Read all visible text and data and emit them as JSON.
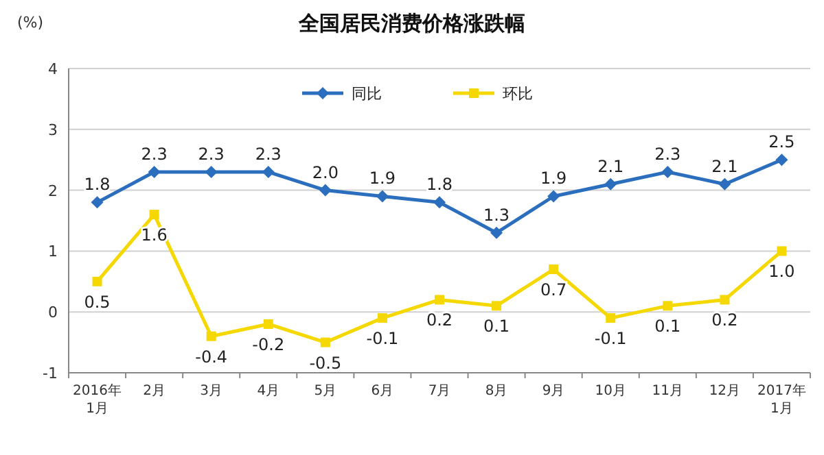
{
  "chart_data": {
    "type": "line",
    "title": "全国居民消费价格涨跌幅",
    "ylabel": "(%)",
    "categories": [
      "2016年\n1月",
      "2月",
      "3月",
      "4月",
      "5月",
      "6月",
      "7月",
      "8月",
      "9月",
      "10月",
      "11月",
      "12月",
      "2017年\n1月"
    ],
    "series": [
      {
        "name": "同比",
        "color": "#2a6ebd",
        "marker": "diamond",
        "values": [
          1.8,
          2.3,
          2.3,
          2.3,
          2.0,
          1.9,
          1.8,
          1.3,
          1.9,
          2.1,
          2.3,
          2.1,
          2.5
        ],
        "value_labels": [
          "1.8",
          "2.3",
          "2.3",
          "2.3",
          "2.0",
          "1.9",
          "1.8",
          "1.3",
          "1.9",
          "2.1",
          "2.3",
          "2.1",
          "2.5"
        ]
      },
      {
        "name": "环比",
        "color": "#f5d800",
        "marker": "square",
        "values": [
          0.5,
          1.6,
          -0.4,
          -0.2,
          -0.5,
          -0.1,
          0.2,
          0.1,
          0.7,
          -0.1,
          0.1,
          0.2,
          1.0
        ],
        "value_labels": [
          "0.5",
          "1.6",
          "-0.4",
          "-0.2",
          "-0.5",
          "-0.1",
          "0.2",
          "0.1",
          "0.7",
          "-0.1",
          "0.1",
          "0.2",
          "1.0"
        ]
      }
    ],
    "ylim": [
      -1,
      4
    ],
    "yticks": [
      -1,
      0,
      1,
      2,
      3,
      4
    ],
    "grid": "y",
    "legend": "top",
    "line_style": "solid"
  }
}
